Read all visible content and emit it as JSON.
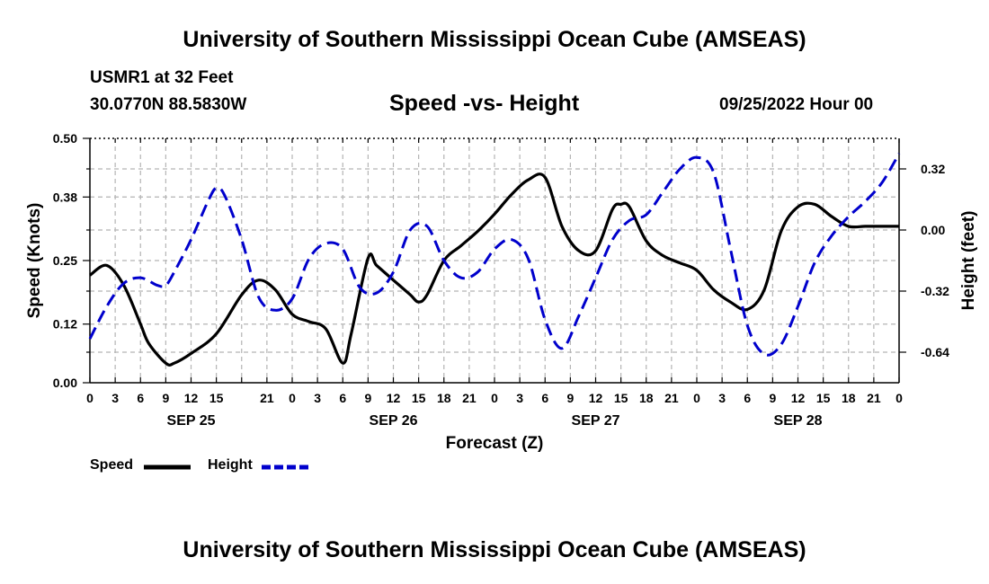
{
  "header": {
    "title": "University of Southern Mississippi Ocean Cube (AMSEAS)",
    "station": "USMR1 at 32 Feet",
    "coords": "30.0770N  88.5830W",
    "subtitle": "Speed -vs- Height",
    "datetime": "09/25/2022 Hour 00"
  },
  "footer": {
    "title": "University of Southern Mississippi Ocean Cube (AMSEAS)"
  },
  "chart_data": {
    "type": "line",
    "title": "Speed -vs- Height",
    "xlabel": "Forecast (Z)",
    "ylabel": "Speed (Knots)",
    "y2label": "Height (feet)",
    "xlim": [
      0,
      96
    ],
    "ylim": [
      0,
      0.5
    ],
    "y2lim": [
      -0.8,
      0.48
    ],
    "grid": true,
    "x_ticks": [
      0,
      3,
      6,
      9,
      12,
      15,
      18,
      21,
      24,
      27,
      30,
      33,
      36,
      39,
      42,
      45,
      48,
      51,
      54,
      57,
      60,
      63,
      66,
      69,
      72,
      75,
      78,
      81,
      84,
      87,
      90,
      93,
      96
    ],
    "x_tick_labels": [
      "0",
      "3",
      "6",
      "9",
      "12",
      "15",
      "21",
      "0",
      "3",
      "6",
      "9",
      "12",
      "15",
      "18",
      "21",
      "0",
      "3",
      "6",
      "9",
      "12",
      "15",
      "18",
      "21",
      "0",
      "3",
      "6",
      "9",
      "12",
      "15",
      "18",
      "21",
      "0"
    ],
    "x_tick_label_hours": [
      0,
      3,
      6,
      9,
      12,
      15,
      21,
      24,
      27,
      30,
      33,
      36,
      39,
      42,
      45,
      48,
      51,
      54,
      57,
      60,
      63,
      66,
      69,
      72,
      75,
      78,
      81,
      84,
      87,
      90,
      93,
      96
    ],
    "day_labels": [
      "SEP 25",
      "SEP 26",
      "SEP 27",
      "SEP 28"
    ],
    "day_label_hours": [
      12,
      36,
      60,
      84
    ],
    "y_ticks": [
      0.0,
      0.12,
      0.25,
      0.38,
      0.5
    ],
    "y_tick_labels": [
      "0.00",
      "0.12",
      "0.25",
      "0.38",
      "0.50"
    ],
    "y2_ticks": [
      -0.64,
      -0.32,
      0.0,
      0.32
    ],
    "y2_tick_labels": [
      "-0.64",
      "-0.32",
      "0.00",
      "0.32"
    ],
    "legend": [
      {
        "name": "Speed",
        "color": "#000000",
        "style": "solid"
      },
      {
        "name": "Height",
        "color": "#0000cc",
        "style": "dashed"
      }
    ],
    "series": [
      {
        "name": "Speed",
        "axis": "left",
        "color": "#000000",
        "x": [
          0,
          2,
          4,
          6,
          7,
          9,
          10,
          12,
          15,
          18,
          20,
          22,
          24,
          26,
          28,
          30,
          31,
          33,
          34,
          36,
          38,
          39,
          40,
          42,
          44,
          46,
          48,
          50,
          52,
          54,
          56,
          58,
          60,
          62,
          63,
          64,
          66,
          68,
          70,
          72,
          74,
          76,
          78,
          80,
          82,
          84,
          86,
          88,
          90,
          92,
          94,
          96
        ],
        "y": [
          0.22,
          0.24,
          0.2,
          0.12,
          0.08,
          0.04,
          0.04,
          0.06,
          0.1,
          0.18,
          0.21,
          0.19,
          0.14,
          0.125,
          0.11,
          0.04,
          0.1,
          0.255,
          0.24,
          0.21,
          0.18,
          0.165,
          0.18,
          0.25,
          0.28,
          0.31,
          0.345,
          0.385,
          0.415,
          0.42,
          0.32,
          0.27,
          0.27,
          0.355,
          0.365,
          0.36,
          0.29,
          0.26,
          0.245,
          0.23,
          0.19,
          0.165,
          0.15,
          0.19,
          0.31,
          0.36,
          0.365,
          0.34,
          0.32,
          0.32,
          0.32,
          0.32
        ]
      },
      {
        "name": "Height",
        "axis": "right",
        "color": "#0000cc",
        "x": [
          0,
          2,
          4,
          6,
          8,
          9,
          10,
          12,
          14,
          15,
          16,
          18,
          20,
          22,
          24,
          26,
          28,
          30,
          32,
          34,
          36,
          38,
          40,
          42,
          44,
          46,
          48,
          50,
          52,
          54,
          56,
          58,
          60,
          62,
          64,
          66,
          68,
          70,
          72,
          74,
          76,
          78,
          80,
          82,
          84,
          86,
          88,
          90,
          92,
          94,
          96
        ],
        "y": [
          -0.57,
          -0.4,
          -0.28,
          -0.25,
          -0.29,
          -0.29,
          -0.22,
          -0.05,
          0.15,
          0.22,
          0.18,
          -0.05,
          -0.35,
          -0.42,
          -0.36,
          -0.15,
          -0.07,
          -0.1,
          -0.3,
          -0.33,
          -0.22,
          0.0,
          0.02,
          -0.16,
          -0.25,
          -0.22,
          -0.1,
          -0.05,
          -0.15,
          -0.47,
          -0.62,
          -0.45,
          -0.25,
          -0.05,
          0.05,
          0.08,
          0.2,
          0.32,
          0.38,
          0.3,
          -0.1,
          -0.5,
          -0.65,
          -0.6,
          -0.4,
          -0.17,
          -0.03,
          0.07,
          0.15,
          0.25,
          0.4
        ]
      }
    ]
  }
}
